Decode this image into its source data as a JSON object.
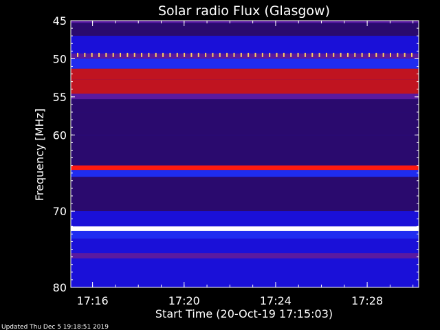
{
  "chart_data": {
    "type": "heatmap",
    "title": "Solar radio Flux (Glasgow)",
    "xlabel": "Start Time (20-Oct-19 17:15:03)",
    "ylabel": "Frequency [MHz]",
    "x_tick_labels": [
      "17:16",
      "17:20",
      "17:24",
      "17:28"
    ],
    "y_ticks": [
      45,
      50,
      55,
      60,
      70,
      80
    ],
    "y_tick_labels": [
      "45",
      "50",
      "55",
      "60",
      "70",
      "80"
    ],
    "ylim": [
      45,
      80
    ],
    "x_range": [
      "17:15:03",
      "17:30:15"
    ],
    "colormap": [
      "#000000",
      "#2a0a6e",
      "#1a10d8",
      "#1f2cf0",
      "#5a1aa0",
      "#c01420",
      "#ff1a10",
      "#ffd060",
      "#ffffff"
    ],
    "bands": [
      {
        "from": 45.0,
        "to": 45.3,
        "level": 0.6
      },
      {
        "from": 45.3,
        "to": 47.0,
        "level": 0.22
      },
      {
        "from": 47.0,
        "to": 48.2,
        "level": 0.32
      },
      {
        "from": 48.2,
        "to": 49.3,
        "level": 0.28
      },
      {
        "from": 49.3,
        "to": 50.0,
        "level": 0.55
      },
      {
        "from": 50.0,
        "to": 51.3,
        "level": 0.42
      },
      {
        "from": 51.3,
        "to": 52.7,
        "level": 0.72
      },
      {
        "from": 52.7,
        "to": 54.6,
        "level": 0.7
      },
      {
        "from": 54.6,
        "to": 55.3,
        "level": 0.5
      },
      {
        "from": 55.3,
        "to": 57.0,
        "level": 0.2
      },
      {
        "from": 57.0,
        "to": 60.0,
        "level": 0.24
      },
      {
        "from": 60.0,
        "to": 64.0,
        "level": 0.22
      },
      {
        "from": 64.0,
        "to": 64.6,
        "level": 0.78
      },
      {
        "from": 64.6,
        "to": 65.5,
        "level": 0.42
      },
      {
        "from": 65.5,
        "to": 70.0,
        "level": 0.24
      },
      {
        "from": 70.0,
        "to": 72.0,
        "level": 0.3
      },
      {
        "from": 72.0,
        "to": 72.6,
        "level": 1.0
      },
      {
        "from": 72.6,
        "to": 73.6,
        "level": 0.45
      },
      {
        "from": 73.6,
        "to": 75.5,
        "level": 0.36
      },
      {
        "from": 75.5,
        "to": 76.2,
        "level": 0.5
      },
      {
        "from": 76.2,
        "to": 80.0,
        "level": 0.28
      }
    ],
    "periodic_spikes": {
      "frequency": 49.5,
      "count": 48,
      "level": 0.9
    }
  },
  "footer": {
    "updated": "Updated Thu Dec  5 19:18:51 2019"
  }
}
